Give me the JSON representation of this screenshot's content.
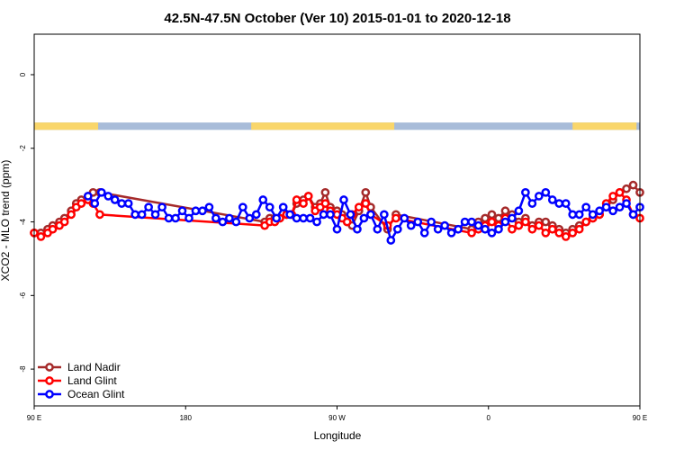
{
  "chart_data": {
    "type": "line",
    "title": "42.5N-47.5N October (Ver 10)   2015-01-01 to 2020-12-18",
    "xlabel": "Longitude",
    "ylabel": "XCO2 - MLO trend (ppm)",
    "xlim": [
      90,
      450
    ],
    "ylim": [
      -9,
      1.1
    ],
    "x_ticks": [
      {
        "value": 90,
        "label": "90 E"
      },
      {
        "value": 180,
        "label": "180"
      },
      {
        "value": 270,
        "label": "90 W"
      },
      {
        "value": 360,
        "label": "0"
      },
      {
        "value": 450,
        "label": "90 E"
      },
      {
        "value": 540,
        "label": "180"
      }
    ],
    "y_ticks": [
      0,
      -2,
      -4,
      -6,
      -8
    ],
    "legend_position": "bottom-left",
    "land_ocean_strip": {
      "y_range": [
        -1.5,
        -1.3
      ],
      "land_color": "#f9d66b",
      "ocean_color": "#a8bcd9",
      "land_segments": [
        [
          90,
          128
        ],
        [
          219,
          304
        ],
        [
          410,
          448
        ]
      ]
    },
    "series": [
      {
        "name": "Land Nadir",
        "color": "#a52a2a",
        "x": [
          90,
          94,
          98,
          101,
          105,
          108,
          112,
          115,
          118,
          122,
          125,
          129,
          227,
          230,
          233,
          236,
          240,
          243,
          246,
          250,
          253,
          257,
          260,
          263,
          266,
          270,
          273,
          276,
          279,
          283,
          287,
          290,
          300,
          305,
          350,
          354,
          358,
          362,
          366,
          370,
          374,
          378,
          382,
          386,
          390,
          394,
          398,
          402,
          406,
          410,
          414,
          418,
          422,
          426,
          430,
          434,
          438,
          442,
          446,
          450
        ],
        "y": [
          -4.3,
          -4.3,
          -4.2,
          -4.1,
          -4.0,
          -3.9,
          -3.7,
          -3.5,
          -3.4,
          -3.3,
          -3.2,
          -3.2,
          -4.0,
          -3.9,
          -3.9,
          -3.9,
          -3.8,
          -3.8,
          -3.5,
          -3.4,
          -3.3,
          -3.6,
          -3.5,
          -3.2,
          -3.6,
          -3.7,
          -3.8,
          -4.0,
          -4.1,
          -3.7,
          -3.2,
          -3.6,
          -4.2,
          -3.8,
          -4.2,
          -4.0,
          -3.9,
          -3.8,
          -3.9,
          -3.7,
          -3.8,
          -4.0,
          -3.9,
          -4.1,
          -4.0,
          -4.0,
          -4.1,
          -4.2,
          -4.3,
          -4.2,
          -4.1,
          -4.0,
          -3.9,
          -3.8,
          -3.6,
          -3.4,
          -3.2,
          -3.1,
          -3.0,
          -3.2
        ]
      },
      {
        "name": "Land Glint",
        "color": "#ff0000",
        "x": [
          90,
          94,
          98,
          101,
          105,
          108,
          112,
          115,
          118,
          122,
          125,
          129,
          227,
          230,
          233,
          236,
          240,
          243,
          246,
          250,
          253,
          257,
          260,
          263,
          266,
          270,
          273,
          276,
          279,
          283,
          287,
          290,
          300,
          305,
          350,
          354,
          358,
          362,
          366,
          370,
          374,
          378,
          382,
          386,
          390,
          394,
          398,
          402,
          406,
          410,
          414,
          418,
          422,
          426,
          430,
          434,
          438,
          442,
          446,
          450
        ],
        "y": [
          -4.3,
          -4.4,
          -4.3,
          -4.2,
          -4.1,
          -4.0,
          -3.8,
          -3.6,
          -3.5,
          -3.4,
          -3.5,
          -3.8,
          -4.1,
          -4.0,
          -4.0,
          -3.9,
          -3.8,
          -3.8,
          -3.4,
          -3.5,
          -3.3,
          -3.7,
          -3.6,
          -3.5,
          -3.7,
          -3.8,
          -3.9,
          -4.0,
          -3.8,
          -3.6,
          -3.5,
          -3.8,
          -4.1,
          -3.9,
          -4.3,
          -4.2,
          -4.1,
          -4.0,
          -4.1,
          -3.9,
          -4.2,
          -4.1,
          -4.0,
          -4.2,
          -4.1,
          -4.3,
          -4.2,
          -4.3,
          -4.4,
          -4.3,
          -4.2,
          -4.0,
          -3.9,
          -3.8,
          -3.5,
          -3.3,
          -3.2,
          -3.4,
          -3.8,
          -3.9
        ]
      },
      {
        "name": "Ocean Glint",
        "color": "#0000ff",
        "x": [
          122,
          126,
          130,
          134,
          138,
          142,
          146,
          150,
          154,
          158,
          162,
          166,
          170,
          174,
          178,
          182,
          186,
          190,
          194,
          198,
          202,
          206,
          210,
          214,
          218,
          222,
          226,
          230,
          234,
          238,
          242,
          246,
          250,
          254,
          258,
          262,
          266,
          270,
          274,
          278,
          282,
          286,
          290,
          294,
          298,
          302,
          306,
          310,
          314,
          318,
          322,
          326,
          330,
          334,
          338,
          342,
          346,
          350,
          354,
          358,
          362,
          366,
          370,
          374,
          378,
          382,
          386,
          390,
          394,
          398,
          402,
          406,
          410,
          414,
          418,
          422,
          426,
          430,
          434,
          438,
          442,
          446,
          450
        ],
        "y": [
          -3.3,
          -3.5,
          -3.2,
          -3.3,
          -3.4,
          -3.5,
          -3.5,
          -3.8,
          -3.8,
          -3.6,
          -3.8,
          -3.6,
          -3.9,
          -3.9,
          -3.7,
          -3.9,
          -3.7,
          -3.7,
          -3.6,
          -3.9,
          -4.0,
          -3.9,
          -4.0,
          -3.6,
          -3.9,
          -3.8,
          -3.4,
          -3.6,
          -3.9,
          -3.6,
          -3.8,
          -3.9,
          -3.9,
          -3.9,
          -4.0,
          -3.8,
          -3.8,
          -4.2,
          -3.4,
          -3.8,
          -4.2,
          -3.9,
          -3.8,
          -4.2,
          -3.8,
          -4.5,
          -4.2,
          -3.9,
          -4.1,
          -4.0,
          -4.3,
          -4.0,
          -4.2,
          -4.1,
          -4.3,
          -4.2,
          -4.0,
          -4.0,
          -4.1,
          -4.2,
          -4.3,
          -4.2,
          -4.0,
          -3.9,
          -3.7,
          -3.2,
          -3.5,
          -3.3,
          -3.2,
          -3.4,
          -3.5,
          -3.5,
          -3.8,
          -3.8,
          -3.6,
          -3.8,
          -3.7,
          -3.6,
          -3.7,
          -3.6,
          -3.5,
          -3.8,
          -3.6
        ]
      }
    ]
  }
}
